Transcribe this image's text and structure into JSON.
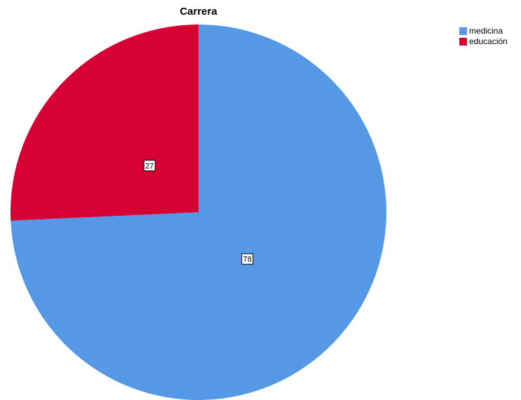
{
  "chart_data": {
    "type": "pie",
    "title": "Carrera",
    "categories": [
      "medicina",
      "educación"
    ],
    "values": [
      78,
      27
    ],
    "colors": [
      "#5599e6",
      "#d60032"
    ],
    "data_labels": [
      "78",
      "27"
    ],
    "legend_position": "top-right"
  }
}
